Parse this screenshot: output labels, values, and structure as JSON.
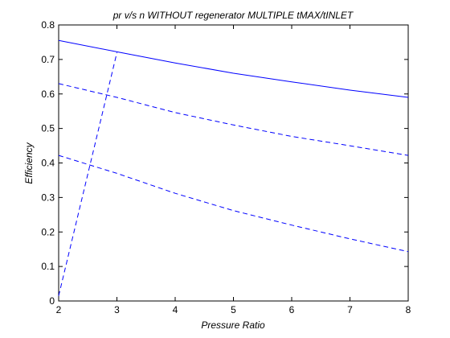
{
  "chart_data": {
    "type": "line",
    "title": "pr v/s n WITHOUT regenerator MULTIPLE tMAX/tINLET",
    "xlabel": "Pressure Ratio",
    "ylabel": "Efficiency",
    "xlim": [
      2,
      8
    ],
    "ylim": [
      0,
      0.8
    ],
    "xticks": [
      2,
      3,
      4,
      5,
      6,
      7,
      8
    ],
    "yticks": [
      0,
      0.1,
      0.2,
      0.3,
      0.4,
      0.5,
      0.6,
      0.7,
      0.8
    ],
    "ytick_labels": [
      "0",
      "0.1",
      "0.2",
      "0.3",
      "0.4",
      "0.5",
      "0.6",
      "0.7",
      "0.8"
    ],
    "grid": false,
    "line_color": "#0000ff",
    "series": [
      {
        "style": "solid",
        "x": [
          2,
          3,
          4,
          5,
          6,
          7,
          8
        ],
        "y": [
          0.755,
          0.722,
          0.69,
          0.66,
          0.635,
          0.611,
          0.59
        ]
      },
      {
        "style": "dashed",
        "x": [
          2,
          3,
          4,
          5,
          6,
          7,
          8
        ],
        "y": [
          0.63,
          0.59,
          0.546,
          0.51,
          0.477,
          0.45,
          0.422
        ]
      },
      {
        "style": "dashed",
        "x": [
          2,
          3,
          4,
          5,
          6,
          7,
          8
        ],
        "y": [
          0.422,
          0.37,
          0.312,
          0.262,
          0.22,
          0.18,
          0.143
        ]
      },
      {
        "style": "dashed",
        "x": [
          2,
          3
        ],
        "y": [
          0.015,
          0.72
        ]
      }
    ]
  }
}
